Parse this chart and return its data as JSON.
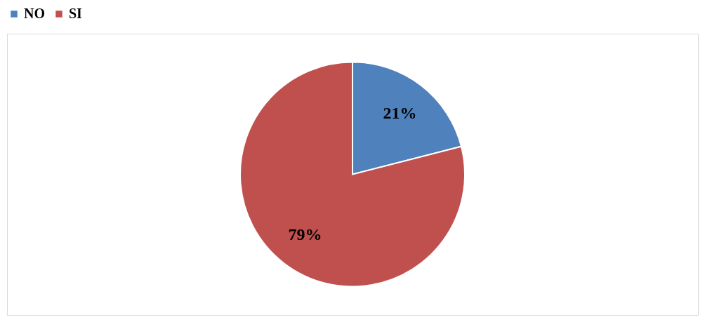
{
  "chart_data": {
    "type": "pie",
    "categories": [
      "NO",
      "SI"
    ],
    "values": [
      21,
      79
    ],
    "colors": [
      "#4f81bd",
      "#c0504d"
    ],
    "value_labels": [
      "21%",
      "79%"
    ],
    "legend": "top"
  }
}
